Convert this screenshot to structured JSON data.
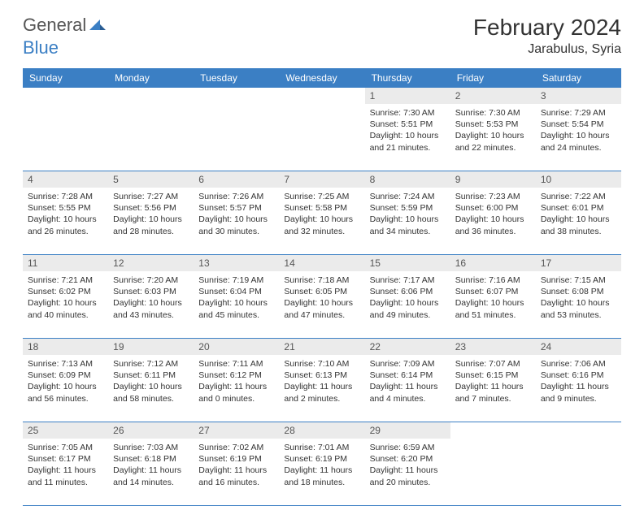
{
  "logo": {
    "gray": "General",
    "blue": "Blue"
  },
  "title": "February 2024",
  "location": "Jarabulus, Syria",
  "colors": {
    "header_bg": "#3b7fc4",
    "daynum_bg": "#ebebeb",
    "text": "#333333",
    "border": "#3b7fc4"
  },
  "day_names": [
    "Sunday",
    "Monday",
    "Tuesday",
    "Wednesday",
    "Thursday",
    "Friday",
    "Saturday"
  ],
  "weeks": [
    {
      "nums": [
        "",
        "",
        "",
        "",
        "1",
        "2",
        "3"
      ],
      "cells": [
        null,
        null,
        null,
        null,
        {
          "sunrise": "Sunrise: 7:30 AM",
          "sunset": "Sunset: 5:51 PM",
          "daylight": "Daylight: 10 hours and 21 minutes."
        },
        {
          "sunrise": "Sunrise: 7:30 AM",
          "sunset": "Sunset: 5:53 PM",
          "daylight": "Daylight: 10 hours and 22 minutes."
        },
        {
          "sunrise": "Sunrise: 7:29 AM",
          "sunset": "Sunset: 5:54 PM",
          "daylight": "Daylight: 10 hours and 24 minutes."
        }
      ]
    },
    {
      "nums": [
        "4",
        "5",
        "6",
        "7",
        "8",
        "9",
        "10"
      ],
      "cells": [
        {
          "sunrise": "Sunrise: 7:28 AM",
          "sunset": "Sunset: 5:55 PM",
          "daylight": "Daylight: 10 hours and 26 minutes."
        },
        {
          "sunrise": "Sunrise: 7:27 AM",
          "sunset": "Sunset: 5:56 PM",
          "daylight": "Daylight: 10 hours and 28 minutes."
        },
        {
          "sunrise": "Sunrise: 7:26 AM",
          "sunset": "Sunset: 5:57 PM",
          "daylight": "Daylight: 10 hours and 30 minutes."
        },
        {
          "sunrise": "Sunrise: 7:25 AM",
          "sunset": "Sunset: 5:58 PM",
          "daylight": "Daylight: 10 hours and 32 minutes."
        },
        {
          "sunrise": "Sunrise: 7:24 AM",
          "sunset": "Sunset: 5:59 PM",
          "daylight": "Daylight: 10 hours and 34 minutes."
        },
        {
          "sunrise": "Sunrise: 7:23 AM",
          "sunset": "Sunset: 6:00 PM",
          "daylight": "Daylight: 10 hours and 36 minutes."
        },
        {
          "sunrise": "Sunrise: 7:22 AM",
          "sunset": "Sunset: 6:01 PM",
          "daylight": "Daylight: 10 hours and 38 minutes."
        }
      ]
    },
    {
      "nums": [
        "11",
        "12",
        "13",
        "14",
        "15",
        "16",
        "17"
      ],
      "cells": [
        {
          "sunrise": "Sunrise: 7:21 AM",
          "sunset": "Sunset: 6:02 PM",
          "daylight": "Daylight: 10 hours and 40 minutes."
        },
        {
          "sunrise": "Sunrise: 7:20 AM",
          "sunset": "Sunset: 6:03 PM",
          "daylight": "Daylight: 10 hours and 43 minutes."
        },
        {
          "sunrise": "Sunrise: 7:19 AM",
          "sunset": "Sunset: 6:04 PM",
          "daylight": "Daylight: 10 hours and 45 minutes."
        },
        {
          "sunrise": "Sunrise: 7:18 AM",
          "sunset": "Sunset: 6:05 PM",
          "daylight": "Daylight: 10 hours and 47 minutes."
        },
        {
          "sunrise": "Sunrise: 7:17 AM",
          "sunset": "Sunset: 6:06 PM",
          "daylight": "Daylight: 10 hours and 49 minutes."
        },
        {
          "sunrise": "Sunrise: 7:16 AM",
          "sunset": "Sunset: 6:07 PM",
          "daylight": "Daylight: 10 hours and 51 minutes."
        },
        {
          "sunrise": "Sunrise: 7:15 AM",
          "sunset": "Sunset: 6:08 PM",
          "daylight": "Daylight: 10 hours and 53 minutes."
        }
      ]
    },
    {
      "nums": [
        "18",
        "19",
        "20",
        "21",
        "22",
        "23",
        "24"
      ],
      "cells": [
        {
          "sunrise": "Sunrise: 7:13 AM",
          "sunset": "Sunset: 6:09 PM",
          "daylight": "Daylight: 10 hours and 56 minutes."
        },
        {
          "sunrise": "Sunrise: 7:12 AM",
          "sunset": "Sunset: 6:11 PM",
          "daylight": "Daylight: 10 hours and 58 minutes."
        },
        {
          "sunrise": "Sunrise: 7:11 AM",
          "sunset": "Sunset: 6:12 PM",
          "daylight": "Daylight: 11 hours and 0 minutes."
        },
        {
          "sunrise": "Sunrise: 7:10 AM",
          "sunset": "Sunset: 6:13 PM",
          "daylight": "Daylight: 11 hours and 2 minutes."
        },
        {
          "sunrise": "Sunrise: 7:09 AM",
          "sunset": "Sunset: 6:14 PM",
          "daylight": "Daylight: 11 hours and 4 minutes."
        },
        {
          "sunrise": "Sunrise: 7:07 AM",
          "sunset": "Sunset: 6:15 PM",
          "daylight": "Daylight: 11 hours and 7 minutes."
        },
        {
          "sunrise": "Sunrise: 7:06 AM",
          "sunset": "Sunset: 6:16 PM",
          "daylight": "Daylight: 11 hours and 9 minutes."
        }
      ]
    },
    {
      "nums": [
        "25",
        "26",
        "27",
        "28",
        "29",
        "",
        ""
      ],
      "cells": [
        {
          "sunrise": "Sunrise: 7:05 AM",
          "sunset": "Sunset: 6:17 PM",
          "daylight": "Daylight: 11 hours and 11 minutes."
        },
        {
          "sunrise": "Sunrise: 7:03 AM",
          "sunset": "Sunset: 6:18 PM",
          "daylight": "Daylight: 11 hours and 14 minutes."
        },
        {
          "sunrise": "Sunrise: 7:02 AM",
          "sunset": "Sunset: 6:19 PM",
          "daylight": "Daylight: 11 hours and 16 minutes."
        },
        {
          "sunrise": "Sunrise: 7:01 AM",
          "sunset": "Sunset: 6:19 PM",
          "daylight": "Daylight: 11 hours and 18 minutes."
        },
        {
          "sunrise": "Sunrise: 6:59 AM",
          "sunset": "Sunset: 6:20 PM",
          "daylight": "Daylight: 11 hours and 20 minutes."
        },
        null,
        null
      ]
    }
  ]
}
